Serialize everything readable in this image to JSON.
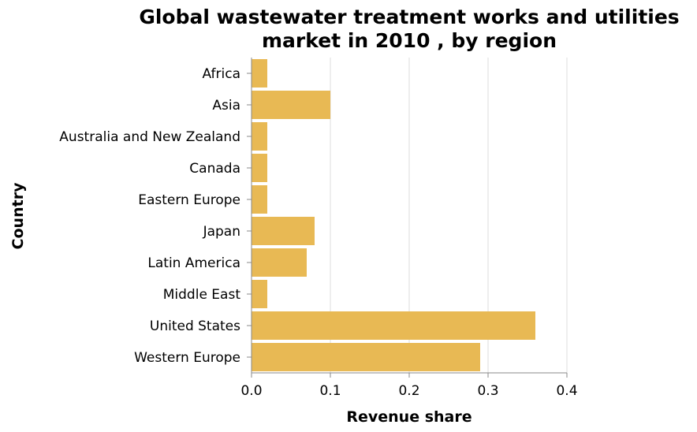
{
  "chart_data": {
    "type": "bar",
    "orientation": "horizontal",
    "title": [
      "Global wastewater treatment works and utilities",
      "market in 2010 , by region"
    ],
    "xlabel": "Revenue share",
    "ylabel": "Country",
    "xlim": [
      0,
      0.4
    ],
    "xticks": [
      "0.0",
      "0.1",
      "0.2",
      "0.3",
      "0.4"
    ],
    "grid": "vertical",
    "bar_color": "#e8b954",
    "categories": [
      "Africa",
      "Asia",
      "Australia and New Zealand",
      "Canada",
      "Eastern Europe",
      "Japan",
      "Latin America",
      "Middle East",
      "United States",
      "Western Europe"
    ],
    "values": [
      0.02,
      0.1,
      0.02,
      0.02,
      0.02,
      0.08,
      0.07,
      0.02,
      0.36,
      0.29
    ]
  }
}
